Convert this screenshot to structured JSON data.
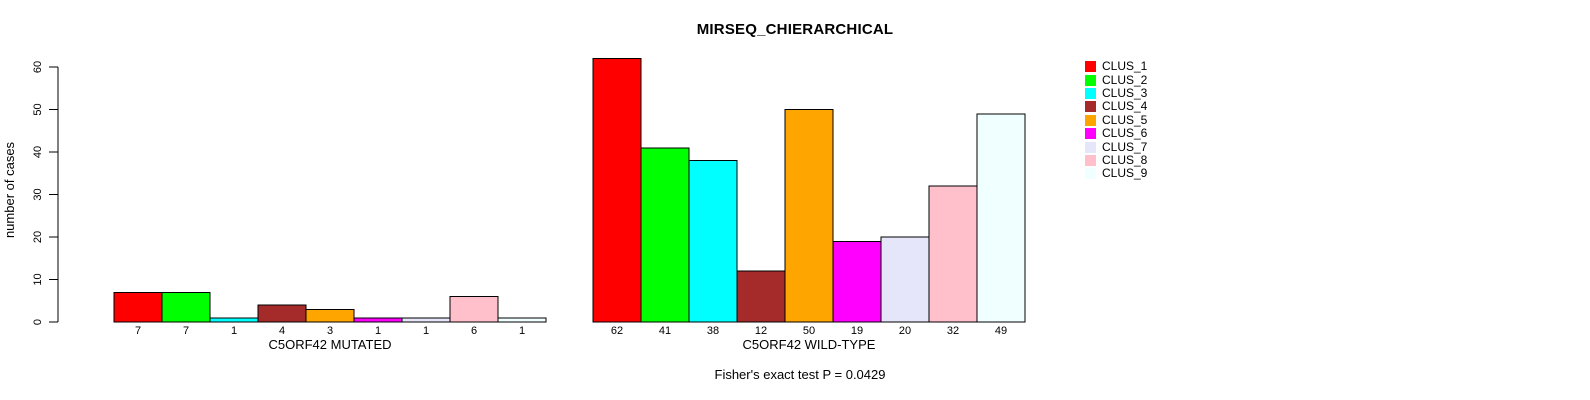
{
  "title": "MIRSEQ_CHIERARCHICAL",
  "caption": "Fisher's exact test P = 0.0429",
  "chart_data": {
    "type": "bar",
    "title": "MIRSEQ_CHIERARCHICAL",
    "ylabel": "number of cases",
    "footnote": "Fisher's exact test P = 0.0429",
    "axis_range": [
      0,
      60
    ],
    "yticks": [
      0,
      10,
      20,
      30,
      40,
      50,
      60
    ],
    "grid": false,
    "legend_position": "right",
    "series_labels": [
      "CLUS_1",
      "CLUS_2",
      "CLUS_3",
      "CLUS_4",
      "CLUS_5",
      "CLUS_6",
      "CLUS_7",
      "CLUS_8",
      "CLUS_9"
    ],
    "colors": [
      "#FF0000",
      "#00FF00",
      "#00FFFF",
      "#A52A2A",
      "#FFA500",
      "#FF00FF",
      "#E6E6FA",
      "#FFC0CB",
      "#F0FFFF"
    ],
    "bar_border_color": "#000000",
    "groups": [
      {
        "label": "C5ORF42 MUTATED",
        "values": [
          7,
          7,
          1,
          4,
          3,
          1,
          1,
          6,
          1
        ]
      },
      {
        "label": "C5ORF42 WILD-TYPE",
        "values": [
          62,
          41,
          38,
          12,
          50,
          19,
          20,
          32,
          49
        ]
      }
    ]
  }
}
